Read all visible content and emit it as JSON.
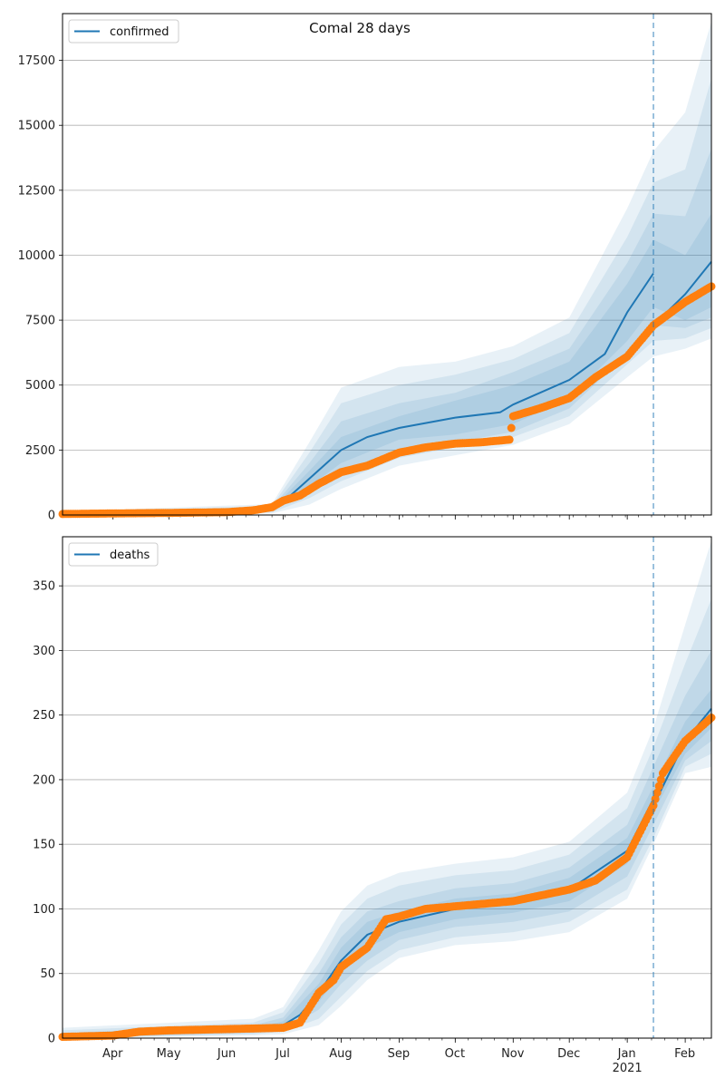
{
  "title": "Comal 28 days",
  "colors": {
    "model": "#1f77b4",
    "observed": "#ff7f0e",
    "band": "#1f77b4",
    "grid": "#b0b0b0"
  },
  "chart_data": [
    {
      "type": "line",
      "legend": "confirmed",
      "legend_position": "top-left",
      "grid": "y",
      "x_range": [
        "2020-03-05",
        "2021-02-15"
      ],
      "ylim": [
        0,
        19300
      ],
      "yticks": [
        0,
        2500,
        5000,
        7500,
        10000,
        12500,
        15000,
        17500
      ],
      "forecast_start": "2021-01-15",
      "model": {
        "x": [
          "2020-03-05",
          "2020-06-01",
          "2020-06-25",
          "2020-07-01",
          "2020-07-15",
          "2020-08-01",
          "2020-08-15",
          "2020-09-01",
          "2020-10-01",
          "2020-10-25",
          "2020-11-01",
          "2020-12-01",
          "2020-12-20",
          "2021-01-01",
          "2021-01-15",
          "2021-02-01",
          "2021-02-15"
        ],
        "y": [
          30,
          80,
          200,
          500,
          1400,
          2500,
          3000,
          3350,
          3750,
          3950,
          4250,
          5200,
          6200,
          7800,
          9300,
          8500,
          9750
        ]
      },
      "bands": [
        {
          "x": [
            "2020-03-05",
            "2020-06-25",
            "2020-07-15",
            "2020-08-01",
            "2020-09-01",
            "2020-10-01",
            "2020-11-01",
            "2020-12-01",
            "2021-01-01",
            "2021-01-15",
            "2021-02-01",
            "2021-02-15"
          ],
          "lo": [
            0,
            170,
            1100,
            2000,
            2900,
            3100,
            3500,
            4500,
            6700,
            8000,
            7500,
            8000
          ],
          "hi": [
            60,
            240,
            1700,
            3000,
            3800,
            4400,
            5000,
            5900,
            8900,
            10600,
            10000,
            11600
          ]
        },
        {
          "x": [
            "2020-03-05",
            "2020-06-25",
            "2020-07-15",
            "2020-08-01",
            "2020-09-01",
            "2020-10-01",
            "2020-11-01",
            "2020-12-01",
            "2021-01-01",
            "2021-01-15",
            "2021-02-01",
            "2021-02-15"
          ],
          "lo": [
            0,
            140,
            900,
            1650,
            2500,
            2800,
            3200,
            4100,
            6200,
            7300,
            7200,
            7600
          ],
          "hi": [
            80,
            290,
            2000,
            3600,
            4300,
            4700,
            5500,
            6400,
            9700,
            11600,
            11500,
            14100
          ]
        },
        {
          "x": [
            "2020-03-05",
            "2020-06-25",
            "2020-07-15",
            "2020-08-01",
            "2020-09-01",
            "2020-10-01",
            "2020-11-01",
            "2020-12-01",
            "2021-01-01",
            "2021-01-15",
            "2021-02-01",
            "2021-02-15"
          ],
          "lo": [
            0,
            100,
            650,
            1300,
            2200,
            2600,
            3000,
            3800,
            5800,
            6700,
            6800,
            7200
          ],
          "hi": [
            110,
            350,
            2400,
            4300,
            5000,
            5400,
            6000,
            7000,
            10700,
            12800,
            13300,
            16800
          ]
        },
        {
          "x": [
            "2020-03-05",
            "2020-06-25",
            "2020-07-15",
            "2020-08-01",
            "2020-09-01",
            "2020-10-01",
            "2020-11-01",
            "2020-12-01",
            "2021-01-01",
            "2021-01-15",
            "2021-02-01",
            "2021-02-15"
          ],
          "lo": [
            0,
            60,
            400,
            1000,
            1900,
            2300,
            2700,
            3500,
            5300,
            6100,
            6400,
            6800
          ],
          "hi": [
            140,
            420,
            2800,
            4900,
            5700,
            5900,
            6500,
            7600,
            11800,
            14000,
            15500,
            19000
          ]
        }
      ],
      "observed": {
        "x": [
          "2020-03-05",
          "2020-04-01",
          "2020-05-01",
          "2020-06-01",
          "2020-06-15",
          "2020-06-25",
          "2020-07-01",
          "2020-07-10",
          "2020-07-20",
          "2020-08-01",
          "2020-08-15",
          "2020-09-01",
          "2020-09-15",
          "2020-10-01",
          "2020-10-15",
          "2020-10-30",
          "2020-11-01",
          "2020-11-15",
          "2020-12-01",
          "2020-12-15",
          "2021-01-01",
          "2021-01-15",
          "2021-02-01",
          "2021-02-15"
        ],
        "y": [
          40,
          60,
          80,
          110,
          180,
          300,
          550,
          750,
          1200,
          1650,
          1900,
          2400,
          2600,
          2750,
          2800,
          2900,
          3800,
          4100,
          4500,
          5300,
          6100,
          7300,
          8200,
          8800
        ]
      }
    },
    {
      "type": "line",
      "legend": "deaths",
      "legend_position": "top-left",
      "grid": "y",
      "x_range": [
        "2020-03-05",
        "2021-02-15"
      ],
      "ylim": [
        0,
        388
      ],
      "yticks": [
        0,
        50,
        100,
        150,
        200,
        250,
        300,
        350
      ],
      "forecast_start": "2021-01-15",
      "xtick_labels": [
        "Apr",
        "May",
        "Jun",
        "Jul",
        "Aug",
        "Sep",
        "Oct",
        "Nov",
        "Dec",
        "Jan",
        "Feb"
      ],
      "xtick_dates": [
        "2020-04-01",
        "2020-05-01",
        "2020-06-01",
        "2020-07-01",
        "2020-08-01",
        "2020-09-01",
        "2020-10-01",
        "2020-11-01",
        "2020-12-01",
        "2021-01-01",
        "2021-02-01"
      ],
      "year_label": "2021",
      "model": {
        "x": [
          "2020-03-05",
          "2020-06-15",
          "2020-07-01",
          "2020-07-10",
          "2020-07-20",
          "2020-08-01",
          "2020-08-15",
          "2020-09-01",
          "2020-10-01",
          "2020-11-01",
          "2020-12-01",
          "2021-01-01",
          "2021-01-15",
          "2021-02-01",
          "2021-02-15"
        ],
        "y": [
          1,
          6,
          10,
          18,
          35,
          60,
          80,
          90,
          100,
          105,
          115,
          145,
          185,
          230,
          255
        ]
      },
      "bands": [
        {
          "x": [
            "2020-03-05",
            "2020-06-15",
            "2020-07-01",
            "2020-07-20",
            "2020-08-01",
            "2020-08-15",
            "2020-09-01",
            "2020-10-01",
            "2020-11-01",
            "2020-12-01",
            "2021-01-01",
            "2021-01-15",
            "2021-02-01",
            "2021-02-15"
          ],
          "lo": [
            0,
            5,
            8,
            28,
            50,
            70,
            82,
            92,
            97,
            106,
            135,
            175,
            220,
            240
          ],
          "hi": [
            3,
            8,
            13,
            42,
            70,
            90,
            98,
            108,
            112,
            124,
            155,
            195,
            245,
            270
          ]
        },
        {
          "x": [
            "2020-03-05",
            "2020-06-15",
            "2020-07-01",
            "2020-07-20",
            "2020-08-01",
            "2020-08-15",
            "2020-09-01",
            "2020-10-01",
            "2020-11-01",
            "2020-12-01",
            "2021-01-01",
            "2021-01-15",
            "2021-02-01",
            "2021-02-15"
          ],
          "lo": [
            0,
            4,
            6,
            22,
            42,
            60,
            76,
            86,
            90,
            98,
            125,
            165,
            215,
            230
          ],
          "hi": [
            4,
            10,
            16,
            50,
            78,
            98,
            106,
            116,
            120,
            132,
            165,
            210,
            265,
            300
          ]
        },
        {
          "x": [
            "2020-03-05",
            "2020-06-15",
            "2020-07-01",
            "2020-07-20",
            "2020-08-01",
            "2020-08-15",
            "2020-09-01",
            "2020-10-01",
            "2020-11-01",
            "2020-12-01",
            "2021-01-01",
            "2021-01-15",
            "2021-02-01",
            "2021-02-15"
          ],
          "lo": [
            0,
            3,
            5,
            15,
            32,
            52,
            68,
            78,
            82,
            90,
            115,
            155,
            210,
            220
          ],
          "hi": [
            6,
            12,
            20,
            58,
            88,
            108,
            118,
            126,
            130,
            142,
            178,
            225,
            290,
            340
          ]
        },
        {
          "x": [
            "2020-03-05",
            "2020-06-15",
            "2020-07-01",
            "2020-07-20",
            "2020-08-01",
            "2020-08-15",
            "2020-09-01",
            "2020-10-01",
            "2020-11-01",
            "2020-12-01",
            "2021-01-01",
            "2021-01-15",
            "2021-02-01",
            "2021-02-15"
          ],
          "lo": [
            0,
            2,
            3,
            10,
            25,
            45,
            62,
            72,
            75,
            82,
            108,
            150,
            205,
            210
          ],
          "hi": [
            8,
            15,
            24,
            68,
            98,
            118,
            128,
            135,
            140,
            152,
            190,
            240,
            320,
            385
          ]
        }
      ],
      "observed": {
        "x": [
          "2020-03-05",
          "2020-04-01",
          "2020-04-15",
          "2020-05-01",
          "2020-06-01",
          "2020-07-01",
          "2020-07-10",
          "2020-07-20",
          "2020-07-28",
          "2020-08-01",
          "2020-08-15",
          "2020-08-25",
          "2020-09-01",
          "2020-09-15",
          "2020-10-01",
          "2020-11-01",
          "2020-12-01",
          "2020-12-15",
          "2021-01-01",
          "2021-01-15",
          "2021-01-20",
          "2021-02-01",
          "2021-02-15"
        ],
        "y": [
          1,
          2,
          5,
          6,
          7,
          8,
          12,
          35,
          45,
          55,
          70,
          92,
          94,
          100,
          102,
          106,
          115,
          122,
          140,
          180,
          205,
          230,
          248
        ]
      }
    }
  ]
}
